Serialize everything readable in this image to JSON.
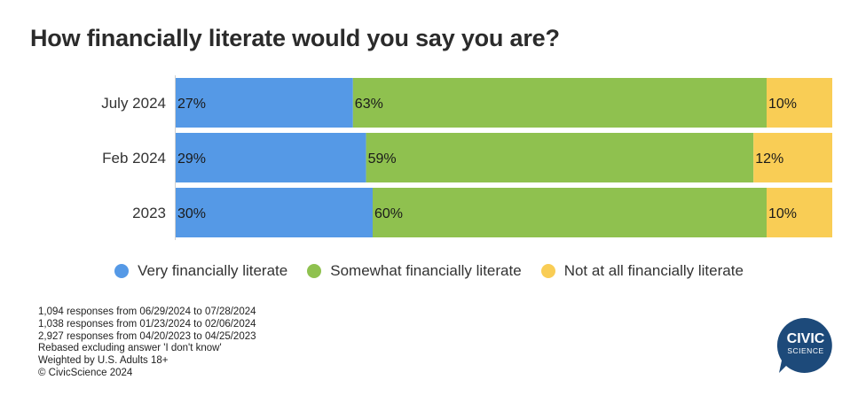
{
  "chart_data": {
    "type": "bar",
    "orientation": "horizontal",
    "stacked": true,
    "title": "How financially literate would you say you are?",
    "categories": [
      "July 2024",
      "Feb 2024",
      "2023"
    ],
    "series": [
      {
        "name": "Very financially literate",
        "color": "#5599e6",
        "values": [
          27,
          29,
          30
        ],
        "labels": [
          "27%",
          "29%",
          "30%"
        ]
      },
      {
        "name": "Somewhat financially literate",
        "color": "#8fc14f",
        "values": [
          63,
          59,
          60
        ],
        "labels": [
          "63%",
          "59%",
          "60%"
        ]
      },
      {
        "name": "Not at all financially literate",
        "color": "#f9cd55",
        "values": [
          10,
          12,
          10
        ],
        "labels": [
          "10%",
          "12%",
          "10%"
        ]
      }
    ],
    "xlim": [
      0,
      100
    ],
    "legend_position": "bottom-center",
    "grid": false
  },
  "notes": [
    "1,094 responses from 06/29/2024 to 07/28/2024",
    "1,038 responses from 01/23/2024 to 02/06/2024",
    "2,927 responses from 04/20/2023 to 04/25/2023",
    "Rebased excluding answer 'I don't know'",
    "Weighted by U.S. Adults 18+",
    "© CivicScience 2024"
  ],
  "logo": {
    "line1": "CIVIC",
    "line2": "SCIENCE",
    "color": "#1d4a7a"
  }
}
